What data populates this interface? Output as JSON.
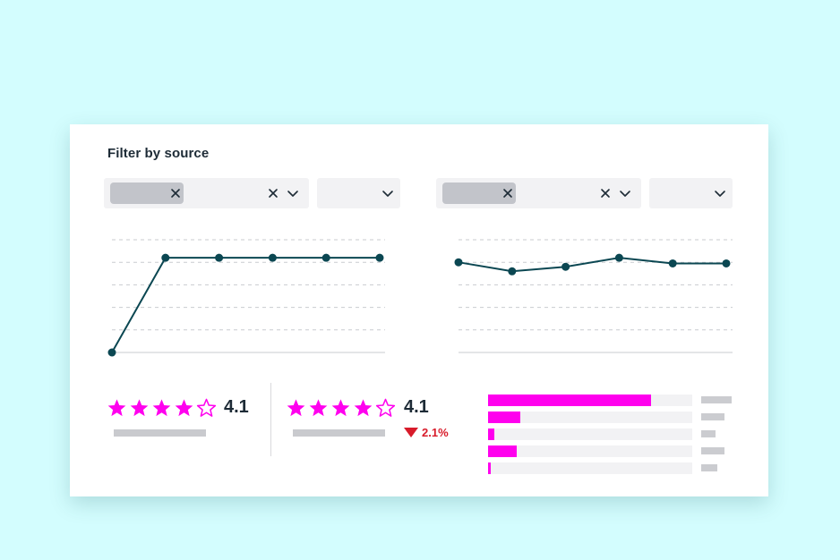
{
  "filter": {
    "title": "Filter by source"
  },
  "icons": {
    "chip_remove": "close-icon",
    "clear": "close-icon",
    "expand": "chevron-down-icon",
    "star_filled": "star-filled-icon",
    "star_empty": "star-outline-icon",
    "delta": "triangle-down-icon"
  },
  "colors": {
    "background": "#d3fdfe",
    "line": "#0b4752",
    "star": "#ff00ee",
    "bar": "#ff00ee",
    "negative": "#d81b2a"
  },
  "chart_data": [
    {
      "type": "line",
      "x": [
        1,
        2,
        3,
        4,
        5,
        6
      ],
      "values": [
        0,
        4.2,
        4.2,
        4.2,
        4.2,
        4.2
      ],
      "ylim": [
        0,
        5
      ],
      "grid": true
    },
    {
      "type": "line",
      "x": [
        1,
        2,
        3,
        4,
        5,
        6
      ],
      "values": [
        4.0,
        3.6,
        3.8,
        4.2,
        3.95,
        3.95
      ],
      "ylim": [
        0,
        5
      ],
      "grid": true
    },
    {
      "type": "bar",
      "orientation": "horizontal",
      "values": [
        0.8,
        0.16,
        0.03,
        0.14,
        0.01
      ],
      "xlim": [
        0,
        1
      ]
    }
  ],
  "ratings": [
    {
      "value": "4.1",
      "stars_filled": 4,
      "stars_total": 5
    },
    {
      "value": "4.1",
      "stars_filled": 4,
      "stars_total": 5,
      "delta": "2.1%"
    }
  ]
}
